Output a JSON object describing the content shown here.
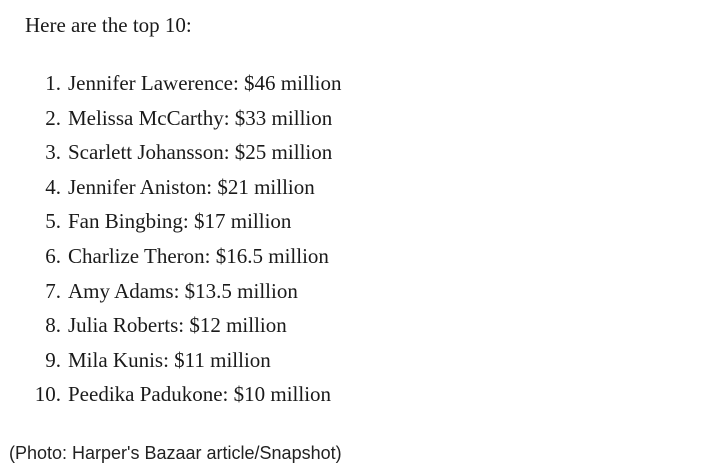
{
  "intro": "Here are the top 10:",
  "list": [
    {
      "num": "1.",
      "text": "Jennifer Lawerence: $46 million"
    },
    {
      "num": "2.",
      "text": "Melissa McCarthy: $33 million"
    },
    {
      "num": "3.",
      "text": "Scarlett Johansson: $25 million"
    },
    {
      "num": "4.",
      "text": "Jennifer Aniston: $21 million"
    },
    {
      "num": "5.",
      "text": "Fan Bingbing: $17 million"
    },
    {
      "num": "6.",
      "text": "Charlize Theron: $16.5 million"
    },
    {
      "num": "7.",
      "text": "Amy Adams: $13.5 million"
    },
    {
      "num": "8.",
      "text": "Julia Roberts: $12 million"
    },
    {
      "num": "9.",
      "text": "Mila Kunis: $11 million"
    },
    {
      "num": "10.",
      "text": "Peedika Padukone: $10 million"
    }
  ],
  "caption": "(Photo: Harper's Bazaar article/Snapshot)"
}
